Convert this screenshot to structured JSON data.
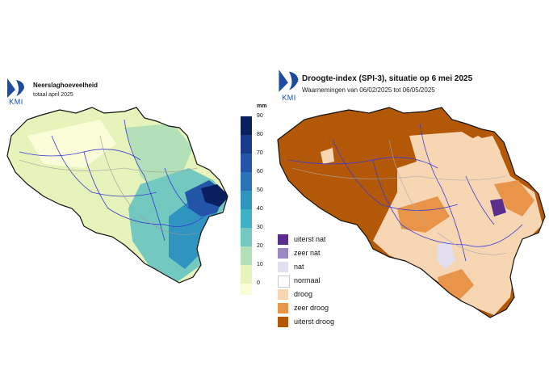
{
  "left": {
    "logo_text": "KMI",
    "title": "Neerslaghoeveelheid",
    "subtitle": "totaal april 2025",
    "colorbar": {
      "unit": "mm",
      "ticks": [
        "90",
        "80",
        "70",
        "60",
        "50",
        "40",
        "30",
        "20",
        "10",
        "0"
      ],
      "colors": [
        "#0b1f5e",
        "#1a3a8c",
        "#2255a8",
        "#2b73b8",
        "#2f95c0",
        "#3fb1c4",
        "#73c8bf",
        "#b4e0b9",
        "#e6f3bb",
        "#fbfcd8"
      ]
    }
  },
  "right": {
    "logo_text": "KMI",
    "title": "Droogte-index (SPI-3), situatie op 6 mei 2025",
    "subtitle": "Waarnemingen van 06/02/2025 tot 06/05/2025",
    "legend": [
      {
        "label": "uiterst nat",
        "color": "#5b2d8c"
      },
      {
        "label": "zeer nat",
        "color": "#9a87c2"
      },
      {
        "label": "nat",
        "color": "#e3dff0"
      },
      {
        "label": "normaal",
        "color": "#ffffff"
      },
      {
        "label": "droog",
        "color": "#f7d6b4"
      },
      {
        "label": "zeer droog",
        "color": "#e8954a"
      },
      {
        "label": "uiterst droog",
        "color": "#b35806"
      }
    ]
  }
}
